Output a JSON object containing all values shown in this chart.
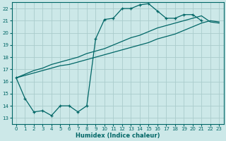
{
  "title": "",
  "xlabel": "Humidex (Indice chaleur)",
  "ylabel": "",
  "bg_color": "#cce8e8",
  "grid_color": "#aacccc",
  "line_color": "#006666",
  "xlim": [
    -0.5,
    23.5
  ],
  "ylim": [
    12.5,
    22.5
  ],
  "xticks": [
    0,
    1,
    2,
    3,
    4,
    5,
    6,
    7,
    8,
    9,
    10,
    11,
    12,
    13,
    14,
    15,
    16,
    17,
    18,
    19,
    20,
    21,
    22,
    23
  ],
  "yticks": [
    13,
    14,
    15,
    16,
    17,
    18,
    19,
    20,
    21,
    22
  ],
  "series1_x": [
    0,
    1,
    2,
    3,
    4,
    5,
    6,
    7,
    8,
    9,
    10,
    11,
    12,
    13,
    14,
    15,
    16,
    17,
    18,
    19,
    20,
    21
  ],
  "series1_y": [
    16.3,
    14.6,
    13.5,
    13.6,
    13.2,
    14.0,
    14.0,
    13.5,
    14.0,
    19.5,
    21.1,
    21.2,
    22.0,
    22.0,
    22.3,
    22.4,
    21.8,
    21.2,
    21.2,
    21.5,
    21.5,
    21.0
  ],
  "series2_x": [
    0,
    1,
    2,
    3,
    4,
    5,
    6,
    7,
    8,
    9,
    10,
    11,
    12,
    13,
    14,
    15,
    16,
    17,
    18,
    19,
    20,
    21,
    22,
    23
  ],
  "series2_y": [
    16.3,
    16.5,
    16.7,
    16.9,
    17.1,
    17.3,
    17.4,
    17.6,
    17.8,
    18.0,
    18.2,
    18.4,
    18.6,
    18.8,
    19.0,
    19.2,
    19.5,
    19.7,
    19.9,
    20.2,
    20.5,
    20.8,
    21.0,
    20.9
  ],
  "series3_x": [
    0,
    1,
    2,
    3,
    4,
    5,
    6,
    7,
    8,
    9,
    10,
    11,
    12,
    13,
    14,
    15,
    16,
    17,
    18,
    19,
    20,
    21,
    22,
    23
  ],
  "series3_y": [
    16.3,
    16.6,
    16.9,
    17.1,
    17.4,
    17.6,
    17.8,
    18.0,
    18.3,
    18.5,
    18.7,
    19.0,
    19.3,
    19.6,
    19.8,
    20.1,
    20.4,
    20.6,
    20.8,
    21.0,
    21.2,
    21.4,
    20.9,
    20.8
  ]
}
